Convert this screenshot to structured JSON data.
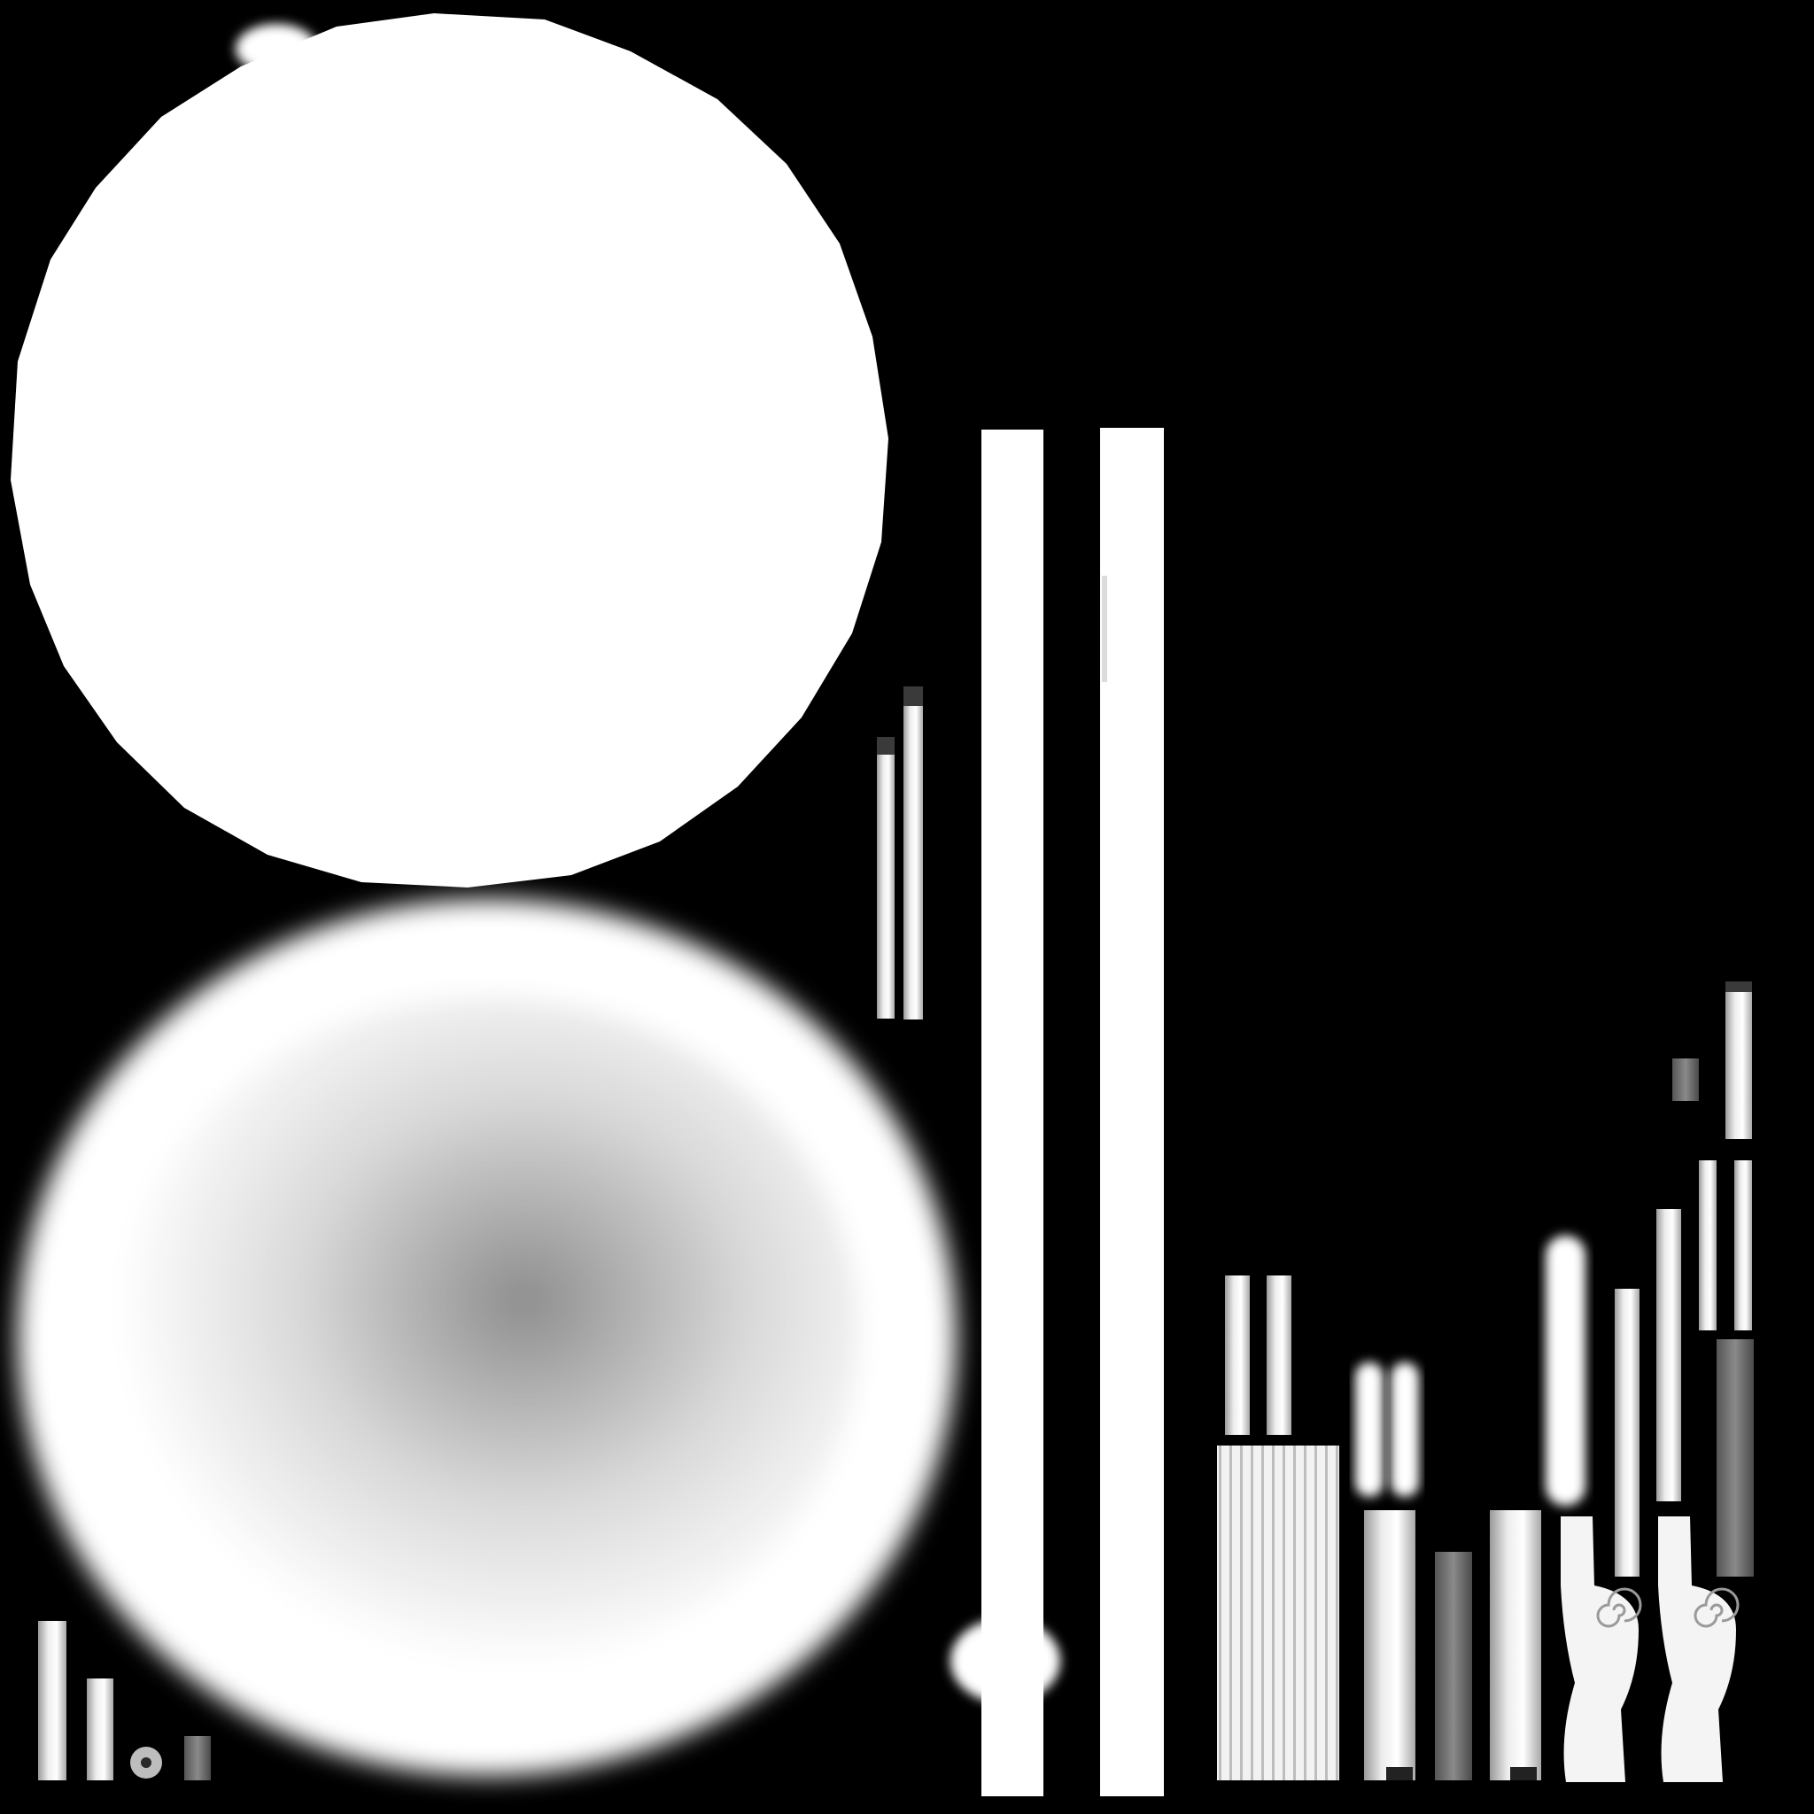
{
  "texture_atlas": {
    "background_color": "#000000",
    "island_color": "#ffffff",
    "shadow_color": "#8e8e8e",
    "icons": {
      "spiral": "spiral-icon"
    }
  }
}
